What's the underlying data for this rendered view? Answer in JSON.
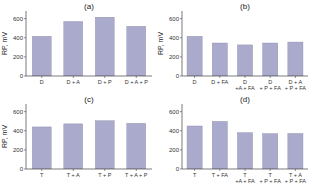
{
  "chart_data": [
    {
      "type": "bar",
      "title": "(a)",
      "ylabel": "RP, mV",
      "categories": [
        "D",
        "D + A",
        "D + P",
        "D + A + P"
      ],
      "values": [
        415,
        570,
        615,
        520
      ],
      "color": "#aaaacc",
      "ylim": [
        0,
        680
      ],
      "yticks": [
        0,
        200,
        400,
        600
      ]
    },
    {
      "type": "bar",
      "title": "(b)",
      "ylabel": "RP, mV",
      "categories": [
        "D",
        "D + FA",
        "D\n+A + FA",
        "D\n+ P + FA",
        "D + A\n+ P + FA"
      ],
      "values": [
        415,
        345,
        325,
        345,
        355
      ],
      "color": "#aaaacc",
      "ylim": [
        0,
        680
      ],
      "yticks": [
        0,
        200,
        400,
        600
      ]
    },
    {
      "type": "bar",
      "title": "(c)",
      "ylabel": "RP, mV",
      "categories": [
        "T",
        "T + A",
        "T + P",
        "T + A + P"
      ],
      "values": [
        440,
        472,
        505,
        478
      ],
      "color": "#aaaacc",
      "ylim": [
        0,
        680
      ],
      "yticks": [
        0,
        200,
        400,
        600
      ]
    },
    {
      "type": "bar",
      "title": "(d)",
      "categories": [
        "T",
        "T + FA",
        "T\n+A + FA",
        "T\n+ P + FA",
        "T + A\n+ P + FA"
      ],
      "values": [
        450,
        498,
        380,
        370,
        372
      ],
      "color": "#aaaacc",
      "ylim": [
        0,
        680
      ],
      "yticks": [
        0,
        200,
        400,
        600
      ]
    }
  ]
}
